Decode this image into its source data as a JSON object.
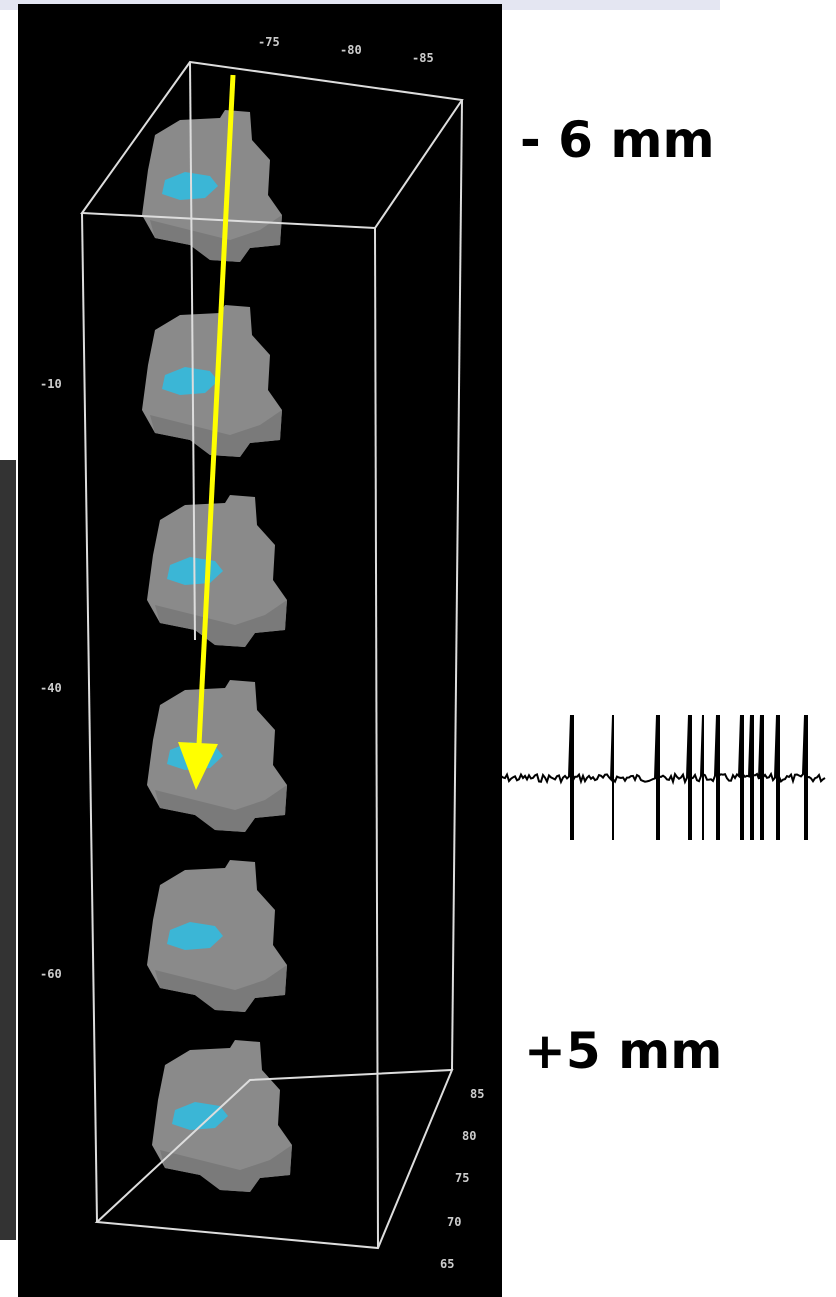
{
  "labels": {
    "top": "- 6 mm",
    "bottom": "+5 mm"
  },
  "axes": {
    "top_ticks": [
      "-75",
      "-80",
      "-85"
    ],
    "left_ticks": [
      "-10",
      "-40",
      "-60"
    ],
    "depth_ticks": [
      "85",
      "80",
      "75",
      "70",
      "65"
    ]
  }
}
